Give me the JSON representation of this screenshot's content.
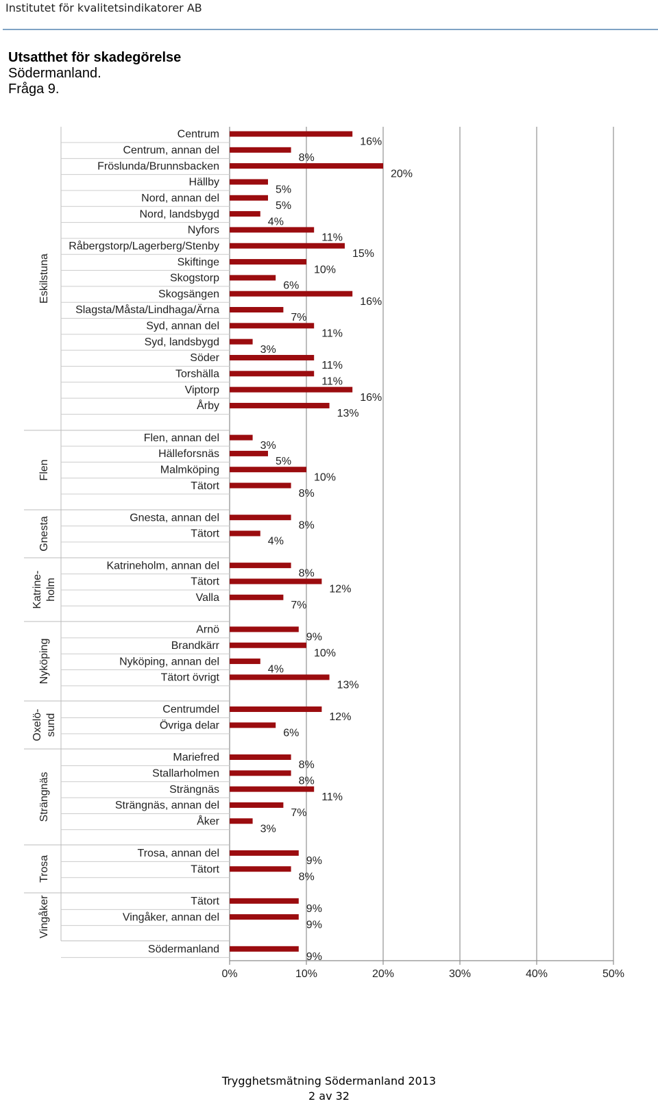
{
  "header": {
    "organization": "Institutet för kvalitetsindikatorer AB"
  },
  "title": {
    "line1": "Utsatthet för skadegörelse",
    "line2": "Södermanland.",
    "line3": "Fråga 9."
  },
  "chart_data": {
    "type": "bar",
    "orientation": "horizontal",
    "xlim": [
      0,
      50
    ],
    "x_ticks": [
      "0%",
      "10%",
      "20%",
      "30%",
      "40%",
      "50%"
    ],
    "grid": true,
    "bar_color": "#9b0c0f",
    "groups": [
      {
        "name": "Eskilstuna",
        "categories": [
          "Centrum",
          "Centrum, annan del",
          "Fröslunda/Brunnsbacken",
          "Hällby",
          "Nord, annan del",
          "Nord, landsbygd",
          "Nyfors",
          "Råbergstorp/Lagerberg/Stenby",
          "Skiftinge",
          "Skogstorp",
          "Skogsängen",
          "Slagsta/Måsta/Lindhaga/Ärna",
          "Syd, annan del",
          "Syd, landsbygd",
          "Söder",
          "Torshälla",
          "Viptorp",
          "Årby"
        ],
        "values": [
          16,
          8,
          20,
          5,
          5,
          4,
          11,
          15,
          10,
          6,
          16,
          7,
          11,
          3,
          11,
          11,
          16,
          13
        ],
        "labels": [
          "16%",
          "8%",
          "20%",
          "5%",
          "5%",
          "4%",
          "11%",
          "15%",
          "10%",
          "6%",
          "16%",
          "7%",
          "11%",
          "3%",
          "11%",
          "11%",
          "16%",
          "13%"
        ]
      },
      {
        "name": "Flen",
        "categories": [
          "Flen, annan del",
          "Hälleforsnäs",
          "Malmköping",
          "Tätort"
        ],
        "values": [
          3,
          5,
          10,
          8
        ],
        "labels": [
          "3%",
          "5%",
          "10%",
          "8%"
        ]
      },
      {
        "name": "Gnesta",
        "categories": [
          "Gnesta, annan del",
          "Tätort"
        ],
        "values": [
          8,
          4
        ],
        "labels": [
          "8%",
          "4%"
        ]
      },
      {
        "name": "Katrine-holm",
        "name_lines": [
          "Katrine-",
          "holm"
        ],
        "categories": [
          "Katrineholm, annan del",
          "Tätort",
          "Valla"
        ],
        "values": [
          8,
          12,
          7
        ],
        "labels": [
          "8%",
          "12%",
          "7%"
        ]
      },
      {
        "name": "Nyköping",
        "categories": [
          "Arnö",
          "Brandkärr",
          "Nyköping, annan del",
          "Tätort övrigt"
        ],
        "values": [
          9,
          10,
          4,
          13
        ],
        "labels": [
          "9%",
          "10%",
          "4%",
          "13%"
        ]
      },
      {
        "name": "Oxelö-sund",
        "name_lines": [
          "Oxelö-",
          "sund"
        ],
        "categories": [
          "Centrumdel",
          "Övriga delar"
        ],
        "values": [
          12,
          6
        ],
        "labels": [
          "12%",
          "6%"
        ]
      },
      {
        "name": "Strängnäs",
        "categories": [
          "Mariefred",
          "Stallarholmen",
          "Strängnäs",
          "Strängnäs, annan del",
          "Åker"
        ],
        "values": [
          8,
          8,
          11,
          7,
          3
        ],
        "labels": [
          "8%",
          "8%",
          "11%",
          "7%",
          "3%"
        ]
      },
      {
        "name": "Trosa",
        "categories": [
          "Trosa, annan del",
          "Tätort"
        ],
        "values": [
          9,
          8
        ],
        "labels": [
          "9%",
          "8%"
        ]
      },
      {
        "name": "Vingåker",
        "categories": [
          "Tätort",
          "Vingåker, annan del"
        ],
        "values": [
          9,
          9
        ],
        "labels": [
          "9%",
          "9%"
        ]
      },
      {
        "name": "",
        "categories": [
          "Södermanland"
        ],
        "values": [
          9
        ],
        "labels": [
          "9%"
        ]
      }
    ]
  },
  "footer": {
    "line1": "Trygghetsmätning Södermanland 2013",
    "line2": "2 av 32"
  }
}
